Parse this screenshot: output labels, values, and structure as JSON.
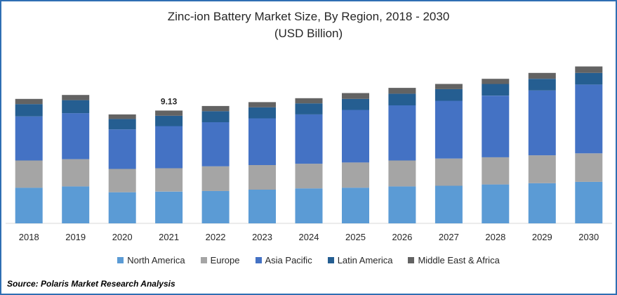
{
  "chart_data": {
    "type": "bar",
    "stacked": true,
    "title": "Zinc-ion Battery Market Size, By Region, 2018 - 2030",
    "subtitle": "(USD Billion)",
    "categories": [
      "2018",
      "2019",
      "2020",
      "2021",
      "2022",
      "2023",
      "2024",
      "2025",
      "2026",
      "2027",
      "2028",
      "2029",
      "2030"
    ],
    "series": [
      {
        "name": "North America",
        "color": "#5b9bd5",
        "values": [
          5.5,
          5.7,
          4.8,
          4.9,
          5.0,
          5.2,
          5.4,
          5.5,
          5.7,
          5.8,
          6.0,
          6.2,
          6.4
        ]
      },
      {
        "name": "Europe",
        "color": "#a5a5a5",
        "values": [
          4.2,
          4.2,
          3.6,
          3.6,
          3.8,
          3.8,
          3.8,
          3.9,
          4.0,
          4.2,
          4.2,
          4.3,
          4.4
        ]
      },
      {
        "name": "Asia Pacific",
        "color": "#4472c4",
        "values": [
          6.8,
          7.1,
          6.1,
          6.5,
          6.8,
          7.2,
          7.6,
          8.1,
          8.5,
          8.9,
          9.5,
          10.0,
          10.6
        ]
      },
      {
        "name": "Latin America",
        "color": "#255e91",
        "values": [
          1.9,
          2.0,
          1.6,
          1.6,
          1.7,
          1.7,
          1.7,
          1.7,
          1.8,
          1.8,
          1.8,
          1.8,
          1.8
        ]
      },
      {
        "name": "Middle East & Africa",
        "color": "#636363",
        "values": [
          0.8,
          0.8,
          0.7,
          0.8,
          0.8,
          0.8,
          0.8,
          0.9,
          0.9,
          0.8,
          0.8,
          0.9,
          1.0
        ]
      }
    ],
    "annotations": [
      {
        "category": "2021",
        "text": "9.13"
      }
    ],
    "ylim": [
      0,
      26
    ],
    "grid": false,
    "legend_position": "bottom"
  },
  "source": "Source: Polaris  Market Research Analysis"
}
